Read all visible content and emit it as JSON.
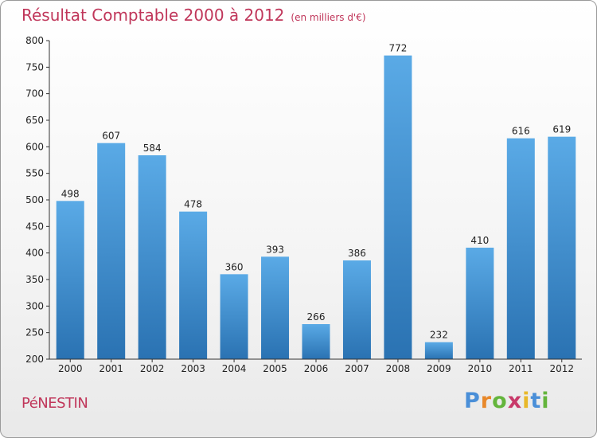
{
  "header": {
    "title": "Résultat Comptable 2000 à 2012",
    "subtitle": "(en milliers d'€)"
  },
  "footer": {
    "town": "PéNESTIN",
    "logo": {
      "letters": [
        "P",
        "r",
        "o",
        "x",
        "i",
        "t",
        "i"
      ]
    }
  },
  "chart_data": {
    "type": "bar",
    "title": "Résultat Comptable 2000 à 2012",
    "subtitle": "(en milliers d'€)",
    "xlabel": "",
    "ylabel": "",
    "categories": [
      "2000",
      "2001",
      "2002",
      "2003",
      "2004",
      "2005",
      "2006",
      "2007",
      "2008",
      "2009",
      "2010",
      "2011",
      "2012"
    ],
    "values": [
      498,
      607,
      584,
      478,
      360,
      393,
      266,
      386,
      772,
      232,
      410,
      616,
      619
    ],
    "ylim": [
      200,
      800
    ],
    "yticks": [
      200,
      250,
      300,
      350,
      400,
      450,
      500,
      550,
      600,
      650,
      700,
      750,
      800
    ],
    "grid": false,
    "colors": {
      "bar_top": "#5aaae6",
      "bar_bottom": "#2a72b2",
      "axis": "#333333",
      "title": "#c0365a"
    }
  }
}
